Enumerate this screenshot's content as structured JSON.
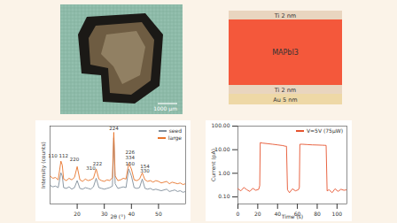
{
  "photo": {
    "scale_bar": "1000 µm"
  },
  "layer_stack": {
    "layers": [
      {
        "label": "Ti 2 nm",
        "color": "#e9d5bf"
      },
      {
        "label": "MAPbI3",
        "color": "#f4583b"
      },
      {
        "label": "Ti 2 nm",
        "color": "#e9d5bf"
      },
      {
        "label": "Au 5 nm",
        "color": "#eed8a6"
      }
    ]
  },
  "chart_data": [
    {
      "type": "line",
      "x_label": "2θ (°)",
      "y_label": "Intensity (counts)",
      "x": [
        10,
        11,
        12,
        13,
        14,
        14.5,
        15,
        16,
        17,
        18,
        19,
        20,
        21,
        22,
        23,
        24,
        25,
        26,
        27,
        28,
        29,
        30,
        31,
        32,
        33,
        33.5,
        34,
        35,
        36,
        37,
        38,
        39,
        40,
        41,
        42,
        43,
        44,
        45,
        46,
        47,
        48,
        49,
        50,
        51,
        52,
        53,
        54,
        55,
        56,
        57,
        58,
        59,
        60
      ],
      "series": [
        {
          "name": "seed",
          "color": "#7f8c99",
          "values": [
            24,
            22,
            23,
            21,
            40,
            36,
            21,
            20,
            22,
            19,
            21,
            30,
            20,
            19,
            21,
            20,
            19,
            22,
            33,
            21,
            20,
            19,
            20,
            21,
            23,
            85,
            26,
            20,
            21,
            22,
            21,
            45,
            36,
            21,
            20,
            21,
            32,
            20,
            19,
            20,
            18,
            19,
            18,
            17,
            18,
            19,
            16,
            17,
            18,
            16,
            17,
            15,
            16
          ]
        },
        {
          "name": "large",
          "color": "#e8742a",
          "values": [
            36,
            33,
            34,
            31,
            55,
            50,
            32,
            30,
            33,
            31,
            34,
            48,
            31,
            29,
            32,
            30,
            31,
            33,
            45,
            32,
            30,
            29,
            31,
            30,
            34,
            92,
            36,
            30,
            31,
            33,
            32,
            52,
            45,
            31,
            30,
            32,
            40,
            31,
            29,
            30,
            28,
            30,
            29,
            27,
            28,
            29,
            26,
            28,
            27,
            26,
            27,
            25,
            26
          ]
        }
      ],
      "annotations": [
        {
          "text": "110",
          "x": 11,
          "y": 62
        },
        {
          "text": "112",
          "x": 15,
          "y": 62
        },
        {
          "text": "220",
          "x": 19,
          "y": 57
        },
        {
          "text": "310",
          "x": 25,
          "y": 46
        },
        {
          "text": "222",
          "x": 27.5,
          "y": 52
        },
        {
          "text": "224",
          "x": 33.5,
          "y": 97
        },
        {
          "text": "226",
          "x": 39.5,
          "y": 66
        },
        {
          "text": "334",
          "x": 39.5,
          "y": 59
        },
        {
          "text": "150",
          "x": 39.5,
          "y": 52
        },
        {
          "text": "154",
          "x": 45,
          "y": 48
        },
        {
          "text": "330",
          "x": 45,
          "y": 42
        }
      ],
      "xlim": [
        10,
        60
      ],
      "xticks": [
        20,
        30,
        40,
        50
      ],
      "ylim": [
        0,
        100
      ],
      "tick_labels": "x",
      "legend": "top-right",
      "grid": false
    },
    {
      "type": "line",
      "x_label": "Time (s)",
      "y_label": "Current (pA)",
      "log": "y",
      "x": [
        0,
        3,
        6,
        9,
        12,
        15,
        18,
        21,
        22,
        22.5,
        25,
        30,
        35,
        40,
        45,
        48,
        49,
        50,
        52,
        55,
        58,
        61,
        62,
        62.5,
        65,
        70,
        75,
        80,
        85,
        88,
        89,
        90,
        92,
        95,
        98,
        101,
        104,
        107,
        110
      ],
      "series": [
        {
          "name": "V=5V (75μW)",
          "color": "#e5542f",
          "values": [
            0.22,
            0.18,
            0.25,
            0.2,
            0.17,
            0.23,
            0.19,
            0.21,
            0.3,
            20,
            19,
            18,
            17,
            16,
            15,
            14,
            14,
            0.2,
            0.15,
            0.22,
            0.18,
            0.2,
            0.25,
            17,
            17,
            16.5,
            16,
            15.8,
            15.5,
            15.3,
            15.2,
            0.18,
            0.2,
            0.15,
            0.22,
            0.17,
            0.21,
            0.19,
            0.2
          ]
        }
      ],
      "xlim": [
        0,
        110
      ],
      "xticks": [
        0,
        20,
        40,
        60,
        80,
        100
      ],
      "ylim": [
        0.05,
        100
      ],
      "yticks": [
        {
          "value": 0.1,
          "label": "0.10"
        },
        {
          "value": 1,
          "label": "1.00"
        },
        {
          "value": 10,
          "label": "10.00"
        },
        {
          "value": 100,
          "label": "100.00"
        }
      ],
      "legend": "top-right",
      "grid": false
    }
  ]
}
